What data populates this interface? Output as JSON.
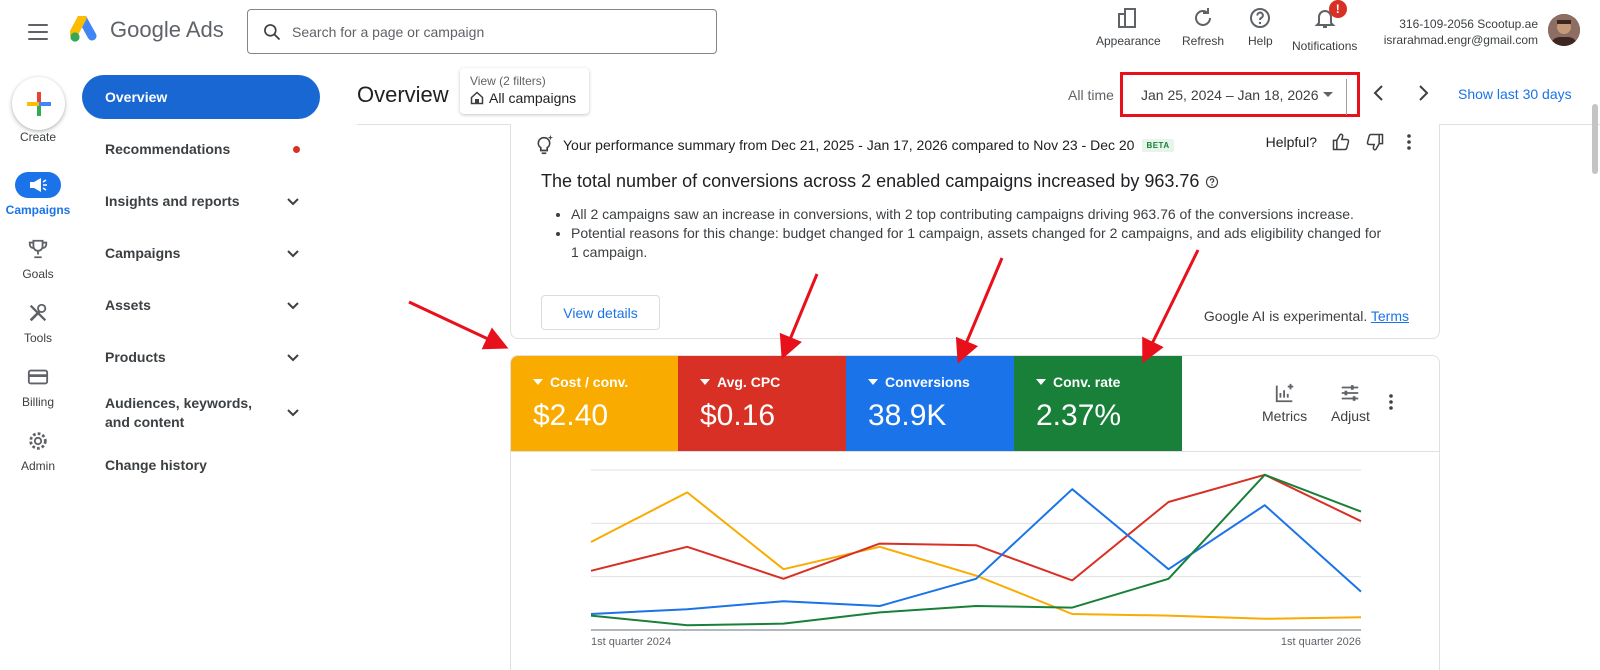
{
  "topbar": {
    "logo_text": "Google Ads",
    "search_placeholder": "Search for a page or campaign",
    "tools": [
      {
        "label": "Appearance",
        "icon": "appearance-icon"
      },
      {
        "label": "Refresh",
        "icon": "refresh-icon"
      },
      {
        "label": "Help",
        "icon": "help-icon"
      },
      {
        "label": "Notifications",
        "icon": "bell-icon",
        "badge": "!"
      }
    ],
    "account": {
      "line1": "316-109-2056 Scootup.ae",
      "line2": "israrahmad.engr@gmail.com"
    }
  },
  "rail": {
    "create_label": "Create",
    "items": [
      {
        "label": "Campaigns",
        "icon": "megaphone-icon",
        "active": true
      },
      {
        "label": "Goals",
        "icon": "trophy-icon"
      },
      {
        "label": "Tools",
        "icon": "tools-icon"
      },
      {
        "label": "Billing",
        "icon": "credit-card-icon"
      },
      {
        "label": "Admin",
        "icon": "gear-icon"
      }
    ]
  },
  "nav": {
    "overview": "Overview",
    "items": [
      {
        "label": "Recommendations",
        "dot": true
      },
      {
        "label": "Insights and reports",
        "chevron": true
      },
      {
        "label": "Campaigns",
        "chevron": true
      },
      {
        "label": "Assets",
        "chevron": true
      },
      {
        "label": "Products",
        "chevron": true
      },
      {
        "label": "Audiences, keywords, and content",
        "chevron": true
      },
      {
        "label": "Change history"
      }
    ]
  },
  "header": {
    "title": "Overview",
    "view_filters": "View (2 filters)",
    "view_campaigns": "All campaigns",
    "all_time": "All time",
    "date_range": "Jan 25, 2024 – Jan 18, 2026",
    "show_last": "Show last 30 days"
  },
  "summary": {
    "headline": "Your performance summary from Dec 21, 2025 - Jan 17, 2026 compared to Nov 23 - Dec 20",
    "beta": "BETA",
    "helpful": "Helpful?",
    "title": "The total number of conversions across 2 enabled campaigns increased by 963.76",
    "bullets": [
      "All 2 campaigns saw an increase in conversions, with 2 top contributing campaigns driving 963.76 of the conversions increase.",
      "Potential reasons for this change: budget changed for 1 campaign, assets changed for 2 campaigns, and ads eligibility changed for 1 campaign."
    ],
    "view_details": "View details",
    "ai_note": "Google AI is experimental.",
    "terms": "Terms"
  },
  "metrics": {
    "tiles": [
      {
        "name": "Cost / conv.",
        "value": "$2.40",
        "color": "#f9ab00"
      },
      {
        "name": "Avg. CPC",
        "value": "$0.16",
        "color": "#d93025"
      },
      {
        "name": "Conversions",
        "value": "38.9K",
        "color": "#1a73e8"
      },
      {
        "name": "Conv. rate",
        "value": "2.37%",
        "color": "#188038"
      }
    ],
    "metrics_label": "Metrics",
    "adjust_label": "Adjust"
  },
  "chart_data": {
    "type": "line",
    "x": [
      "1st quarter 2024",
      "2nd quarter 2024",
      "3rd quarter 2024",
      "4th quarter 2024",
      "1st quarter 2025",
      "2nd quarter 2025",
      "3rd quarter 2025",
      "4th quarter 2025",
      "1st quarter 2026"
    ],
    "xtick_labels": [
      "1st quarter 2024",
      "1st quarter 2026"
    ],
    "ylim": [
      0,
      100
    ],
    "grid": true,
    "series": [
      {
        "name": "Cost / conv.",
        "color": "#f9ab00",
        "values": [
          55,
          86,
          38,
          52,
          34,
          10,
          9,
          7,
          8
        ]
      },
      {
        "name": "Avg. CPC",
        "color": "#d93025",
        "values": [
          37,
          52,
          32,
          54,
          53,
          31,
          80,
          97,
          68
        ]
      },
      {
        "name": "Conversions",
        "color": "#1a73e8",
        "values": [
          10,
          13,
          18,
          15,
          32,
          88,
          38,
          78,
          24
        ]
      },
      {
        "name": "Conv. rate",
        "color": "#188038",
        "values": [
          9,
          3,
          4,
          11,
          15,
          14,
          32,
          97,
          74
        ]
      }
    ]
  }
}
